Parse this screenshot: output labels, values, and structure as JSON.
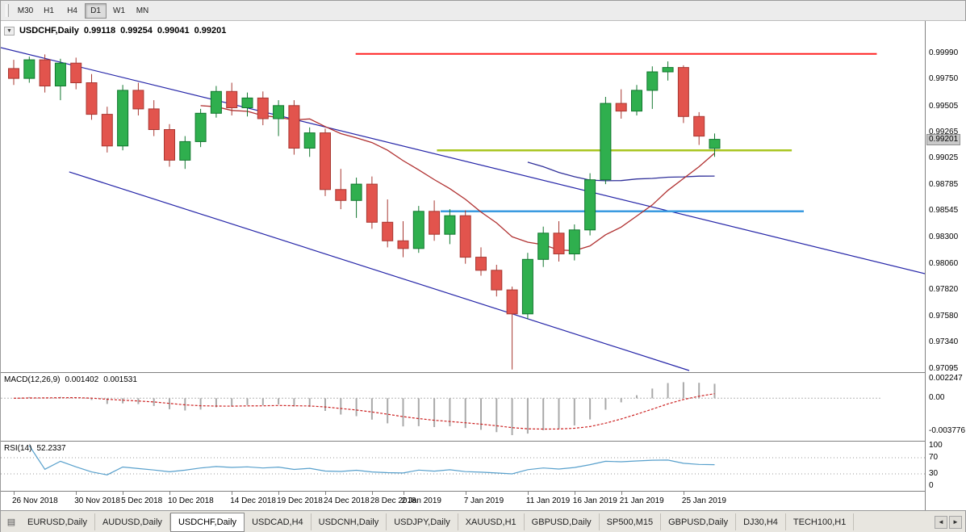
{
  "toolbar": {
    "timeframes": [
      {
        "label": "M30",
        "active": false
      },
      {
        "label": "H1",
        "active": false
      },
      {
        "label": "H4",
        "active": false
      },
      {
        "label": "D1",
        "active": true
      },
      {
        "label": "W1",
        "active": false
      },
      {
        "label": "MN",
        "active": false
      }
    ]
  },
  "chart_header": {
    "collapse_icon": "▼",
    "title": "USDCHF,Daily",
    "open": "0.99118",
    "high": "0.99254",
    "low": "0.99041",
    "close": "0.99201"
  },
  "chart_data": {
    "type": "candlestick",
    "symbol": "USDCHF",
    "timeframe": "Daily",
    "price_max": 0.9999,
    "price_min": 0.97095,
    "current_price": 0.99201,
    "price_axis": [
      0.9999,
      0.9975,
      0.99505,
      0.99265,
      0.99025,
      0.98785,
      0.98545,
      0.983,
      0.9806,
      0.9782,
      0.9758,
      0.9734,
      0.97095
    ],
    "candles": [
      [
        0.9985,
        0.9993,
        0.997,
        0.9976
      ],
      [
        0.9976,
        0.9996,
        0.9972,
        0.9993
      ],
      [
        0.9993,
        0.9998,
        0.9963,
        0.9969
      ],
      [
        0.9969,
        0.9994,
        0.9956,
        0.999
      ],
      [
        0.999,
        0.9995,
        0.9966,
        0.9972
      ],
      [
        0.9972,
        0.998,
        0.9938,
        0.9943
      ],
      [
        0.9943,
        0.995,
        0.9908,
        0.9914
      ],
      [
        0.9914,
        0.997,
        0.991,
        0.9965
      ],
      [
        0.9965,
        0.9972,
        0.9942,
        0.9948
      ],
      [
        0.9948,
        0.9956,
        0.9923,
        0.9929
      ],
      [
        0.9929,
        0.9934,
        0.9895,
        0.9901
      ],
      [
        0.9901,
        0.9923,
        0.9893,
        0.9918
      ],
      [
        0.9918,
        0.9948,
        0.9913,
        0.9944
      ],
      [
        0.9944,
        0.9969,
        0.994,
        0.9964
      ],
      [
        0.9964,
        0.9972,
        0.9942,
        0.9949
      ],
      [
        0.9949,
        0.9963,
        0.9941,
        0.9958
      ],
      [
        0.9958,
        0.9964,
        0.9933,
        0.9939
      ],
      [
        0.9939,
        0.9956,
        0.9923,
        0.9951
      ],
      [
        0.9951,
        0.9956,
        0.9906,
        0.9912
      ],
      [
        0.9912,
        0.9931,
        0.9904,
        0.9926
      ],
      [
        0.9926,
        0.993,
        0.9868,
        0.9874
      ],
      [
        0.9874,
        0.9893,
        0.9856,
        0.9864
      ],
      [
        0.9864,
        0.9885,
        0.9848,
        0.9879
      ],
      [
        0.9879,
        0.9886,
        0.9838,
        0.9844
      ],
      [
        0.9844,
        0.9865,
        0.9821,
        0.9827
      ],
      [
        0.9827,
        0.9845,
        0.9812,
        0.982
      ],
      [
        0.982,
        0.9859,
        0.9816,
        0.9854
      ],
      [
        0.9854,
        0.9864,
        0.9827,
        0.9833
      ],
      [
        0.9833,
        0.9856,
        0.9824,
        0.985
      ],
      [
        0.985,
        0.9855,
        0.9806,
        0.9812
      ],
      [
        0.9812,
        0.9821,
        0.9795,
        0.98
      ],
      [
        0.98,
        0.9805,
        0.9776,
        0.9782
      ],
      [
        0.9782,
        0.9785,
        0.9709,
        0.976
      ],
      [
        0.976,
        0.9816,
        0.9755,
        0.981
      ],
      [
        0.981,
        0.984,
        0.9803,
        0.9834
      ],
      [
        0.9834,
        0.9845,
        0.9808,
        0.9815
      ],
      [
        0.9815,
        0.9842,
        0.9809,
        0.9837
      ],
      [
        0.9837,
        0.9889,
        0.9832,
        0.9883
      ],
      [
        0.9883,
        0.9959,
        0.9879,
        0.9953
      ],
      [
        0.9953,
        0.9966,
        0.9939,
        0.9946
      ],
      [
        0.9946,
        0.997,
        0.9942,
        0.9965
      ],
      [
        0.9965,
        0.9987,
        0.9948,
        0.9982
      ],
      [
        0.9982,
        0.99915,
        0.9974,
        0.9986
      ],
      [
        0.9986,
        0.9988,
        0.9935,
        0.9941
      ],
      [
        0.9941,
        0.9945,
        0.9915,
        0.9923
      ],
      [
        0.99118,
        0.99254,
        0.99041,
        0.99201
      ]
    ],
    "x_labels": [
      {
        "text": "26 Nov 2018",
        "index": 0
      },
      {
        "text": "30 Nov 2018",
        "index": 4
      },
      {
        "text": "5 Dec 2018",
        "index": 7
      },
      {
        "text": "10 Dec 2018",
        "index": 10
      },
      {
        "text": "14 Dec 2018",
        "index": 14
      },
      {
        "text": "19 Dec 2018",
        "index": 17
      },
      {
        "text": "24 Dec 2018",
        "index": 20
      },
      {
        "text": "28 Dec 2018",
        "index": 23
      },
      {
        "text": "2 Jan 2019",
        "index": 25
      },
      {
        "text": "7 Jan 2019",
        "index": 29
      },
      {
        "text": "11 Jan 2019",
        "index": 33
      },
      {
        "text": "16 Jan 2019",
        "index": 36
      },
      {
        "text": "21 Jan 2019",
        "index": 39
      },
      {
        "text": "25 Jan 2019",
        "index": 43
      }
    ],
    "overlays": {
      "fast_period": 13,
      "slow_period": 34
    },
    "trendlines": [
      {
        "x1": 0.0,
        "p1": 1.00042,
        "x2": 1.0,
        "p2": 0.97969
      },
      {
        "x1": 0.074,
        "p1": 0.98902,
        "x2": 0.745,
        "p2": 0.9708
      }
    ],
    "hlines": [
      {
        "price": 0.99985,
        "from": 0.384,
        "to": 0.948,
        "color_key": "hline_red",
        "width": 2
      },
      {
        "price": 0.991,
        "from": 0.472,
        "to": 0.856,
        "color_key": "hline_yellow",
        "width": 2.5
      },
      {
        "price": 0.9854,
        "from": 0.476,
        "to": 0.869,
        "color_key": "hline_blue",
        "width": 2.5
      }
    ],
    "macd": {
      "label": "MACD(12,26,9)",
      "value_macd": "0.001402",
      "value_signal": "0.001531",
      "params": [
        12,
        26,
        9
      ],
      "axis_values": [
        0.002247,
        0,
        -0.003776
      ],
      "axis_labels": [
        "0.002247",
        "0.00",
        "-0.003776"
      ]
    },
    "rsi": {
      "label": "RSI(14)",
      "value": "52.2337",
      "period": 14,
      "levels": [
        70,
        30
      ],
      "axis_values": [
        100,
        70,
        30,
        0
      ]
    },
    "colors": {
      "bull": "#2faf4e",
      "bull_border": "#12772f",
      "bear": "#e2544d",
      "bear_border": "#a83832",
      "ma_fast": "#b03030",
      "ma_slow": "#30309a",
      "trendline": "#2525a8",
      "hline_red": "#ff2222",
      "hline_yellow": "#a9c520",
      "hline_blue": "#3b9be0",
      "macd_hist": "#a9a9a9",
      "macd_signal": "#cc2222",
      "rsi_line": "#58a0cc"
    }
  },
  "bottom_tabs": {
    "icon": "▤",
    "scroll_left": "◄",
    "scroll_right": "►",
    "tabs": [
      {
        "label": "EURUSD,Daily",
        "active": false
      },
      {
        "label": "AUDUSD,Daily",
        "active": false
      },
      {
        "label": "USDCHF,Daily",
        "active": true
      },
      {
        "label": "USDCAD,H4",
        "active": false
      },
      {
        "label": "USDCNH,Daily",
        "active": false
      },
      {
        "label": "USDJPY,Daily",
        "active": false
      },
      {
        "label": "XAUUSD,H1",
        "active": false
      },
      {
        "label": "GBPUSD,Daily",
        "active": false
      },
      {
        "label": "SP500,M15",
        "active": false
      },
      {
        "label": "GBPUSD,Daily",
        "active": false
      },
      {
        "label": "DJ30,H4",
        "active": false
      },
      {
        "label": "TECH100,H1",
        "active": false
      }
    ]
  }
}
